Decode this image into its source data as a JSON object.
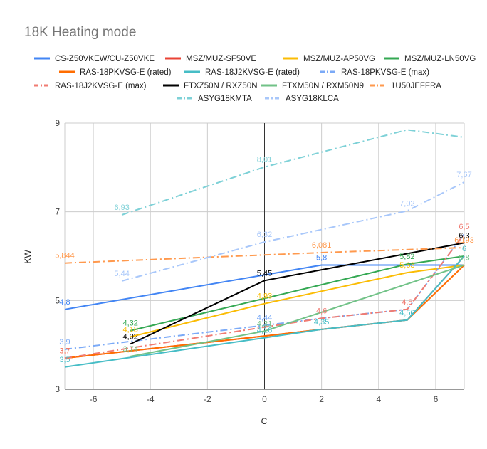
{
  "chart_data": {
    "type": "line",
    "title": "18K Heating mode",
    "xlabel": "C",
    "ylabel": "KW",
    "xlim": [
      -7,
      7
    ],
    "ylim": [
      3,
      9
    ],
    "xticks": [
      -6,
      -4,
      -2,
      0,
      2,
      4,
      6
    ],
    "yticks": [
      3,
      5,
      7,
      9
    ],
    "grid": true,
    "legend_position": "top",
    "series": [
      {
        "name": "CS-Z50VKEW/CU-Z50VKE",
        "color": "#4285f4",
        "dash": "solid",
        "points": [
          [
            -7,
            4.8
          ],
          [
            2,
            5.8
          ],
          [
            7,
            5.8
          ]
        ],
        "labels": [
          {
            "x": -7,
            "y": 4.8,
            "text": "4,8"
          },
          {
            "x": 2,
            "y": 5.8,
            "text": "5,8"
          }
        ]
      },
      {
        "name": "MSZ/MUZ-SF50VE",
        "color": "#ea4335",
        "dash": "solid",
        "points": [
          [
            -7,
            3.7
          ],
          [
            0,
            4.2
          ],
          [
            2,
            4.35
          ],
          [
            5,
            4.56
          ],
          [
            7,
            6.0
          ]
        ],
        "labels": []
      },
      {
        "name": "MSZ/MUZ-AP50VG",
        "color": "#fbbc04",
        "dash": "solid",
        "points": [
          [
            -4.7,
            4.18
          ],
          [
            0,
            4.93
          ],
          [
            5,
            5.63
          ],
          [
            7,
            5.8
          ]
        ],
        "labels": [
          {
            "x": -4.7,
            "y": 4.18,
            "text": "4,18"
          },
          {
            "x": 0,
            "y": 4.93,
            "text": "4,93"
          },
          {
            "x": 5,
            "y": 5.63,
            "text": "5,63"
          }
        ]
      },
      {
        "name": "MSZ/MUZ-LN50VG",
        "color": "#34a853",
        "dash": "solid",
        "points": [
          [
            -4.7,
            4.32
          ],
          [
            5,
            5.82
          ],
          [
            7,
            6.0
          ]
        ],
        "labels": [
          {
            "x": -4.7,
            "y": 4.32,
            "text": "4,32"
          },
          {
            "x": 5,
            "y": 5.82,
            "text": "5,82"
          }
        ]
      },
      {
        "name": "RAS-18PKVSG-E (rated)",
        "color": "#ff6d01",
        "dash": "solid",
        "points": [
          [
            -7,
            3.7
          ],
          [
            0,
            4.2
          ],
          [
            2,
            4.35
          ],
          [
            5,
            4.56
          ],
          [
            7,
            5.8
          ]
        ],
        "labels": [
          {
            "x": -7,
            "y": 3.7,
            "text": "3,7"
          }
        ]
      },
      {
        "name": "RAS-18J2KVSG-E (rated)",
        "color": "#46bdc6",
        "dash": "solid",
        "points": [
          [
            -7,
            3.5
          ],
          [
            0,
            4.16
          ],
          [
            2,
            4.35
          ],
          [
            5,
            4.56
          ],
          [
            7,
            6.0
          ]
        ],
        "labels": [
          {
            "x": -7,
            "y": 3.5,
            "text": "3,5"
          },
          {
            "x": 0,
            "y": 4.16,
            "text": "4,16"
          },
          {
            "x": 2,
            "y": 4.35,
            "text": "4,35"
          },
          {
            "x": 5,
            "y": 4.56,
            "text": "4,56"
          },
          {
            "x": 7,
            "y": 6.0,
            "text": "6"
          }
        ]
      },
      {
        "name": "RAS-18PKVSG-E (max)",
        "color": "#7baaf7",
        "dash": "dashdot",
        "points": [
          [
            -7,
            3.9
          ],
          [
            0,
            4.44
          ],
          [
            2,
            4.6
          ],
          [
            5,
            4.8
          ],
          [
            7,
            6.5
          ]
        ],
        "labels": [
          {
            "x": -7,
            "y": 3.9,
            "text": "3,9"
          },
          {
            "x": 0,
            "y": 4.44,
            "text": "4,44"
          }
        ]
      },
      {
        "name": "RAS-18J2KVSG-E (max)",
        "color": "#f07b72",
        "dash": "dashdot",
        "points": [
          [
            -7,
            3.7
          ],
          [
            0,
            4.4
          ],
          [
            2,
            4.6
          ],
          [
            5,
            4.8
          ],
          [
            7,
            6.5
          ]
        ],
        "labels": [
          {
            "x": -7,
            "y": 3.7,
            "text": "3,7"
          },
          {
            "x": 2,
            "y": 4.6,
            "text": "4,6"
          },
          {
            "x": 5,
            "y": 4.8,
            "text": "4,8"
          },
          {
            "x": 7,
            "y": 6.5,
            "text": "6,5"
          }
        ]
      },
      {
        "name": "FTXZ50N / RXZ50N",
        "color": "#000000",
        "dash": "solid",
        "points": [
          [
            -4.7,
            4.02
          ],
          [
            0,
            5.45
          ],
          [
            7,
            6.3
          ]
        ],
        "labels": [
          {
            "x": -4.7,
            "y": 4.02,
            "text": "4,02"
          },
          {
            "x": 0,
            "y": 5.45,
            "text": "5,45"
          },
          {
            "x": 7,
            "y": 6.3,
            "text": "6,3"
          }
        ]
      },
      {
        "name": "FTXM50N / RXM50N9",
        "color": "#71c287",
        "dash": "solid",
        "points": [
          [
            -4.7,
            3.74
          ],
          [
            0,
            4.31
          ],
          [
            7,
            5.8
          ]
        ],
        "labels": [
          {
            "x": -4.7,
            "y": 3.74,
            "text": "3,74"
          },
          {
            "x": 0,
            "y": 4.31,
            "text": "4,31"
          },
          {
            "x": 7,
            "y": 5.8,
            "text": "5,8"
          }
        ]
      },
      {
        "name": "1U50JEFFRA",
        "color": "#ff994d",
        "dash": "dashdot",
        "points": [
          [
            -7,
            5.844
          ],
          [
            2,
            6.081
          ],
          [
            7,
            6.193
          ]
        ],
        "labels": [
          {
            "x": -7,
            "y": 5.844,
            "text": "5,844"
          },
          {
            "x": 2,
            "y": 6.081,
            "text": "6,081"
          },
          {
            "x": 7,
            "y": 6.193,
            "text": "6,193"
          }
        ]
      },
      {
        "name": "ASYG18KMTA",
        "color": "#7ed1d7",
        "dash": "dashdot",
        "points": [
          [
            -5,
            6.93
          ],
          [
            0,
            8.01
          ],
          [
            5,
            8.85
          ],
          [
            7,
            8.68
          ]
        ],
        "labels": [
          {
            "x": -5,
            "y": 6.93,
            "text": "6,93"
          },
          {
            "x": 0,
            "y": 8.01,
            "text": "8,01"
          }
        ]
      },
      {
        "name": "ASYG18KLCA",
        "color": "#a8c7fa",
        "dash": "dashdot",
        "points": [
          [
            -5,
            5.44
          ],
          [
            0,
            6.32
          ],
          [
            5,
            7.02
          ],
          [
            7,
            7.67
          ]
        ],
        "labels": [
          {
            "x": -5,
            "y": 5.44,
            "text": "5,44"
          },
          {
            "x": 0,
            "y": 6.32,
            "text": "6,32"
          },
          {
            "x": 5,
            "y": 7.02,
            "text": "7,02"
          },
          {
            "x": 7,
            "y": 7.67,
            "text": "7,67"
          }
        ]
      }
    ]
  }
}
